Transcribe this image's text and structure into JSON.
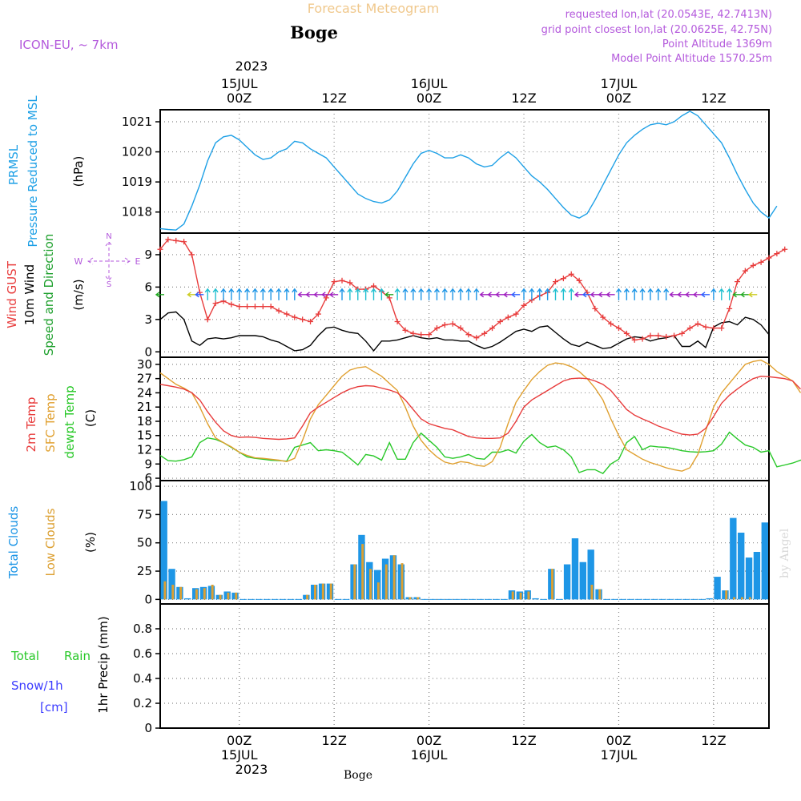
{
  "header": {
    "title": "Forecast Meteogram",
    "station": "Boge",
    "model": "ICON-EU, ~ 7km",
    "requested": "requested lon,lat (20.0543E, 42.7413N)",
    "gridpoint": "grid point closest lon,lat (20.0625E, 42.75N)",
    "altitude": "Point Altitude 1369m",
    "model_altitude": "Model Point Altitude 1570.25m",
    "footer_station": "Boge",
    "watermark": "by Angel",
    "year": "2023"
  },
  "colors": {
    "pressure": "#1ea0e6",
    "gust": "#e83c3c",
    "wind": "#000000",
    "dir": "#1ea02d",
    "temp": "#e83c3c",
    "sfc": "#e0a030",
    "dew": "#28c828",
    "total_cloud": "#1e96e6",
    "low_cloud": "#dca032",
    "rain": "#28c828",
    "snow": "#3c3cff",
    "purple": "#b45adc",
    "title": "#f0c88c"
  },
  "time_axis": {
    "top_ticks": [
      "00Z",
      "12Z",
      "00Z",
      "12Z",
      "00Z",
      "12Z"
    ],
    "date_labels": [
      "15JUL",
      "16JUL",
      "17JUL"
    ],
    "hours_span": 77
  },
  "chart_data": [
    {
      "type": "line",
      "name": "pressure",
      "label_lines": [
        "PRMSL",
        "Pressure Reduced to MSL"
      ],
      "unit": "(hPa)",
      "ylim": [
        1017.3,
        1021.4
      ],
      "yticks": [
        1018,
        1019,
        1020,
        1021
      ],
      "series": [
        {
          "name": "PRMSL",
          "values": [
            1017.45,
            1017.42,
            1017.4,
            1017.6,
            1018.2,
            1018.9,
            1019.7,
            1020.3,
            1020.5,
            1020.55,
            1020.4,
            1020.15,
            1019.9,
            1019.75,
            1019.8,
            1020.0,
            1020.1,
            1020.35,
            1020.3,
            1020.1,
            1019.95,
            1019.8,
            1019.5,
            1019.2,
            1018.9,
            1018.6,
            1018.45,
            1018.35,
            1018.3,
            1018.4,
            1018.7,
            1019.15,
            1019.6,
            1019.95,
            1020.05,
            1019.95,
            1019.8,
            1019.8,
            1019.9,
            1019.8,
            1019.6,
            1019.5,
            1019.55,
            1019.8,
            1020.0,
            1019.8,
            1019.5,
            1019.2,
            1019.0,
            1018.75,
            1018.45,
            1018.15,
            1017.9,
            1017.8,
            1017.95,
            1018.4,
            1018.9,
            1019.4,
            1019.9,
            1020.3,
            1020.55,
            1020.75,
            1020.9,
            1020.95,
            1020.9,
            1021.0,
            1021.2,
            1021.35,
            1021.2,
            1020.9,
            1020.6,
            1020.3,
            1019.8,
            1019.25,
            1018.75,
            1018.3,
            1018.0,
            1017.8,
            1018.2
          ]
        }
      ]
    },
    {
      "type": "line",
      "name": "wind",
      "label_lines": [
        "Wind GUST",
        "10m Wind",
        "Speed and Direction"
      ],
      "unit": "(m/s)",
      "compass": {
        "n": "N",
        "s": "S",
        "w": "W",
        "e": "E"
      },
      "ylim": [
        -0.5,
        11
      ],
      "yticks": [
        0,
        3,
        6,
        9
      ],
      "series": [
        {
          "name": "Wind GUST",
          "values": [
            9.5,
            10.4,
            10.3,
            10.2,
            9.0,
            5.5,
            3.0,
            4.5,
            4.7,
            4.4,
            4.2,
            4.2,
            4.2,
            4.2,
            4.2,
            3.8,
            3.5,
            3.2,
            3.0,
            2.8,
            3.5,
            5.0,
            6.5,
            6.6,
            6.4,
            5.8,
            5.8,
            6.1,
            5.6,
            5.0,
            2.8,
            2.0,
            1.7,
            1.6,
            1.6,
            2.2,
            2.5,
            2.6,
            2.2,
            1.6,
            1.3,
            1.7,
            2.2,
            2.8,
            3.2,
            3.5,
            4.3,
            4.8,
            5.2,
            5.5,
            6.5,
            6.8,
            7.2,
            6.6,
            5.5,
            4.0,
            3.2,
            2.6,
            2.2,
            1.7,
            1.1,
            1.2,
            1.5,
            1.5,
            1.4,
            1.5,
            1.7,
            2.2,
            2.6,
            2.3,
            2.2,
            2.2,
            4.0,
            6.5,
            7.5,
            8.0,
            8.3,
            8.7,
            9.1,
            9.5
          ]
        },
        {
          "name": "10m Wind",
          "values": [
            3.0,
            3.6,
            3.7,
            3.0,
            1.0,
            0.6,
            1.2,
            1.3,
            1.2,
            1.3,
            1.5,
            1.5,
            1.5,
            1.4,
            1.1,
            0.9,
            0.5,
            0.1,
            0.2,
            0.6,
            1.5,
            2.2,
            2.3,
            2.0,
            1.8,
            1.7,
            1.0,
            0.1,
            1.0,
            1.0,
            1.1,
            1.3,
            1.5,
            1.3,
            1.2,
            1.3,
            1.1,
            1.1,
            1.0,
            1.0,
            0.6,
            0.3,
            0.5,
            0.9,
            1.4,
            1.9,
            2.1,
            1.9,
            2.3,
            2.4,
            1.8,
            1.2,
            0.7,
            0.5,
            0.9,
            0.6,
            0.3,
            0.4,
            0.8,
            1.2,
            1.4,
            1.3,
            1.0,
            1.2,
            1.3,
            1.5,
            0.5,
            0.5,
            1.0,
            0.4,
            2.3,
            2.7,
            2.8,
            2.5,
            3.2,
            3.0,
            2.5,
            1.6
          ]
        }
      ],
      "arrow_hours": [
        0,
        4,
        5,
        6,
        7,
        8,
        9,
        10,
        11,
        12,
        13,
        14,
        15,
        16,
        17,
        18,
        19,
        20,
        21,
        22,
        23,
        24,
        25,
        26,
        27,
        28,
        29,
        30,
        31,
        32,
        33,
        34,
        35,
        36,
        37,
        38,
        39,
        40,
        41,
        42,
        43,
        44,
        45,
        46,
        47,
        48,
        49,
        50,
        51,
        52,
        53,
        54,
        55,
        56,
        57,
        58,
        59,
        60,
        61,
        62,
        63,
        64,
        65,
        66,
        67,
        68,
        69,
        70,
        71,
        72,
        73,
        74,
        75
      ],
      "arrow_colors": [
        "#22aa22",
        "#cccc22",
        "#3060ff",
        "#20c0d0",
        "#20c0d0",
        "#1e96e6",
        "#1e96e6",
        "#1e96e6",
        "#1e96e6",
        "#1e96e6",
        "#1e96e6",
        "#1e96e6",
        "#1e96e6",
        "#1e96e6",
        "#1e96e6",
        "#a020c0",
        "#a020c0",
        "#a020c0",
        "#a020c0",
        "#a020c0",
        "#1e96e6",
        "#20c0d0",
        "#20c0d0",
        "#20c0d0",
        "#20c0d0",
        "#20c0d0",
        "#22aa22",
        "#20c0d0",
        "#1e96e6",
        "#1e96e6",
        "#1e96e6",
        "#1e96e6",
        "#1e96e6",
        "#1e96e6",
        "#1e96e6",
        "#1e96e6",
        "#1e96e6",
        "#1e96e6",
        "#a020c0",
        "#a020c0",
        "#a020c0",
        "#a020c0",
        "#3060ff",
        "#1e96e6",
        "#1e96e6",
        "#1e96e6",
        "#1e96e6",
        "#20c0d0",
        "#20c0d0",
        "#20c0d0",
        "#a020c0",
        "#3060ff",
        "#a020c0",
        "#a020c0",
        "#a020c0",
        "#1e96e6",
        "#1e96e6",
        "#1e96e6",
        "#1e96e6",
        "#1e96e6",
        "#1e96e6",
        "#1e96e6",
        "#a020c0",
        "#a020c0",
        "#a020c0",
        "#a020c0",
        "#3060ff",
        "#1e96e6",
        "#20c0d0",
        "#20c0d0",
        "#22aa22",
        "#22aa22",
        "#cccc22"
      ]
    },
    {
      "type": "line",
      "name": "temperature",
      "label_lines": [
        "2m Temp",
        "SFC Temp",
        "dewpt Temp"
      ],
      "unit": "(C)",
      "ylim": [
        5.5,
        31.5
      ],
      "yticks": [
        6,
        9,
        12,
        15,
        18,
        21,
        24,
        27,
        30
      ],
      "series": [
        {
          "name": "2m Temp",
          "values": [
            25.8,
            25.5,
            25.2,
            24.8,
            24.0,
            22.5,
            20.0,
            17.8,
            16.0,
            15.0,
            14.6,
            14.7,
            14.6,
            14.4,
            14.3,
            14.2,
            14.3,
            14.5,
            17.0,
            19.8,
            21.0,
            22.0,
            23.0,
            24.0,
            24.8,
            25.3,
            25.5,
            25.4,
            25.0,
            24.6,
            24.0,
            22.5,
            20.5,
            18.5,
            17.5,
            17.0,
            16.5,
            16.2,
            15.5,
            14.8,
            14.5,
            14.4,
            14.4,
            14.5,
            15.5,
            18.0,
            21.0,
            22.5,
            23.5,
            24.5,
            25.5,
            26.5,
            27.0,
            27.1,
            27.0,
            26.5,
            25.8,
            24.5,
            22.5,
            20.5,
            19.3,
            18.5,
            17.8,
            17.0,
            16.4,
            15.8,
            15.3,
            15.1,
            15.3,
            16.5,
            19.0,
            21.8,
            23.5,
            24.8,
            26.0,
            27.0,
            27.5,
            27.4,
            27.2,
            27.0,
            26.5,
            24.8
          ]
        },
        {
          "name": "SFC Temp",
          "values": [
            28.2,
            27.0,
            25.8,
            25.0,
            24.0,
            21.0,
            17.5,
            14.5,
            13.5,
            12.6,
            11.5,
            10.8,
            10.3,
            10.2,
            10.0,
            9.8,
            9.5,
            10.2,
            14.0,
            18.5,
            21.5,
            23.5,
            25.5,
            27.5,
            28.8,
            29.3,
            29.5,
            28.5,
            27.5,
            26.0,
            24.5,
            21.0,
            17.0,
            14.0,
            12.0,
            10.5,
            9.4,
            9.0,
            9.5,
            9.3,
            8.7,
            8.5,
            9.5,
            12.5,
            17.5,
            22.0,
            24.5,
            26.8,
            28.5,
            29.8,
            30.3,
            30.1,
            29.5,
            28.5,
            27.0,
            25.0,
            22.5,
            18.5,
            15.0,
            12.0,
            11.0,
            10.0,
            9.3,
            8.8,
            8.2,
            7.8,
            7.5,
            8.2,
            11.0,
            16.0,
            21.0,
            24.0,
            26.0,
            28.0,
            30.0,
            30.6,
            30.9,
            30.0,
            28.5,
            27.5,
            26.5,
            24.0
          ]
        },
        {
          "name": "dewpt Temp",
          "values": [
            10.8,
            9.7,
            9.6,
            9.9,
            10.5,
            13.5,
            14.5,
            14.2,
            13.5,
            12.5,
            11.5,
            10.5,
            10.2,
            10.0,
            9.8,
            9.7,
            9.6,
            12.5,
            13.0,
            13.5,
            11.8,
            12.0,
            11.8,
            11.5,
            10.2,
            8.8,
            11.0,
            10.7,
            9.8,
            13.5,
            10.0,
            10.0,
            13.5,
            15.5,
            14.0,
            12.5,
            10.5,
            10.2,
            10.5,
            11.0,
            10.2,
            10.0,
            11.5,
            11.5,
            12.0,
            11.3,
            13.8,
            15.2,
            13.5,
            12.5,
            12.8,
            12.0,
            10.5,
            7.2,
            7.8,
            7.8,
            7.0,
            9.0,
            10.0,
            13.5,
            14.8,
            12.0,
            12.8,
            12.6,
            12.5,
            12.2,
            11.8,
            11.6,
            11.5,
            11.6,
            11.8,
            13.2,
            15.7,
            14.3,
            13.0,
            12.5,
            11.5,
            11.8,
            8.4,
            8.8,
            9.2,
            9.8,
            9.5,
            10.5
          ]
        }
      ]
    },
    {
      "type": "bar",
      "name": "clouds",
      "label_lines": [
        "Total Clouds",
        "Low Clouds"
      ],
      "unit": "(%)",
      "ylim": [
        -4,
        105
      ],
      "yticks": [
        0,
        25,
        50,
        75,
        100
      ],
      "series": [
        {
          "name": "Total Clouds",
          "values": [
            87,
            27,
            11,
            1,
            10,
            11,
            12,
            4,
            7,
            6,
            0,
            0,
            0,
            0,
            0,
            0,
            0,
            0,
            4,
            13,
            14,
            14,
            0,
            0,
            31,
            57,
            33,
            26,
            36,
            39,
            31,
            2,
            2,
            0,
            0,
            0,
            0,
            0,
            0,
            0,
            0,
            0,
            0,
            0,
            8,
            7,
            8,
            1,
            0,
            27,
            0,
            31,
            54,
            33,
            44,
            9,
            0,
            0,
            0,
            0,
            0,
            0,
            0,
            0,
            0,
            0,
            0,
            0,
            0,
            1,
            20,
            8,
            72,
            59,
            37,
            42,
            68
          ]
        },
        {
          "name": "Low Clouds",
          "values": [
            16,
            13,
            11,
            0,
            9,
            10,
            13,
            4,
            6,
            6,
            0,
            0,
            0,
            0,
            0,
            0,
            0,
            0,
            4,
            13,
            14,
            14,
            0,
            0,
            31,
            49,
            27,
            15,
            31,
            39,
            32,
            2,
            2,
            0,
            0,
            0,
            0,
            0,
            0,
            0,
            0,
            0,
            0,
            0,
            7,
            6,
            7,
            0,
            0,
            27,
            0,
            0,
            0,
            0,
            13,
            9,
            0,
            0,
            0,
            0,
            0,
            0,
            0,
            0,
            0,
            0,
            0,
            0,
            0,
            0,
            0,
            8,
            2,
            2,
            2,
            0,
            0
          ]
        }
      ]
    },
    {
      "type": "line",
      "name": "precipitation",
      "label_lines": [
        "Total",
        "Rain",
        "Snow/1h",
        "[cm]"
      ],
      "unit": "1hr Precip (mm)",
      "ylim": [
        0,
        1
      ],
      "yticks": [
        0,
        0.2,
        0.4,
        0.6,
        0.8
      ],
      "series": [
        {
          "name": "Total Rain",
          "values": [
            0,
            0,
            0,
            0,
            0,
            0,
            0,
            0,
            0,
            0
          ]
        }
      ]
    }
  ]
}
